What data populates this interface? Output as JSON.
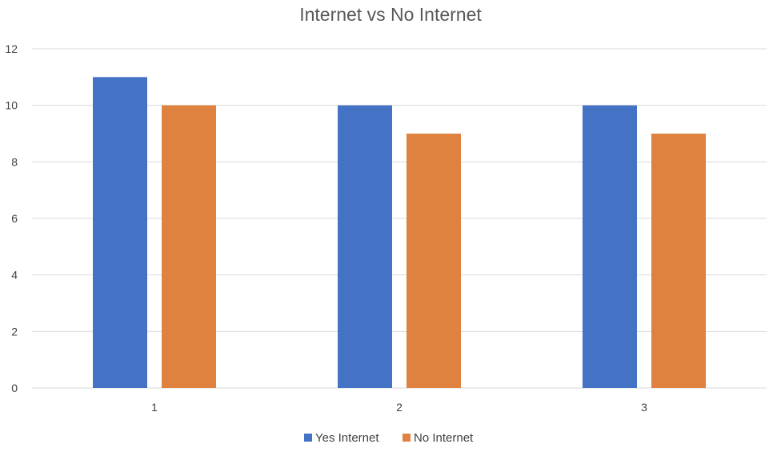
{
  "chart_data": {
    "type": "bar",
    "title": "Internet vs No Internet",
    "xlabel": "",
    "ylabel": "",
    "categories": [
      "1",
      "2",
      "3"
    ],
    "series": [
      {
        "name": "Yes Internet",
        "values": [
          11,
          10,
          10
        ],
        "color": "#4472C4"
      },
      {
        "name": "No Internet",
        "values": [
          10,
          9,
          9
        ],
        "color": "#E0823F"
      }
    ],
    "ylim": [
      0,
      12
    ],
    "yticks": [
      0,
      2,
      4,
      6,
      8,
      10,
      12
    ],
    "grid": true,
    "legend": "bottom-center"
  }
}
